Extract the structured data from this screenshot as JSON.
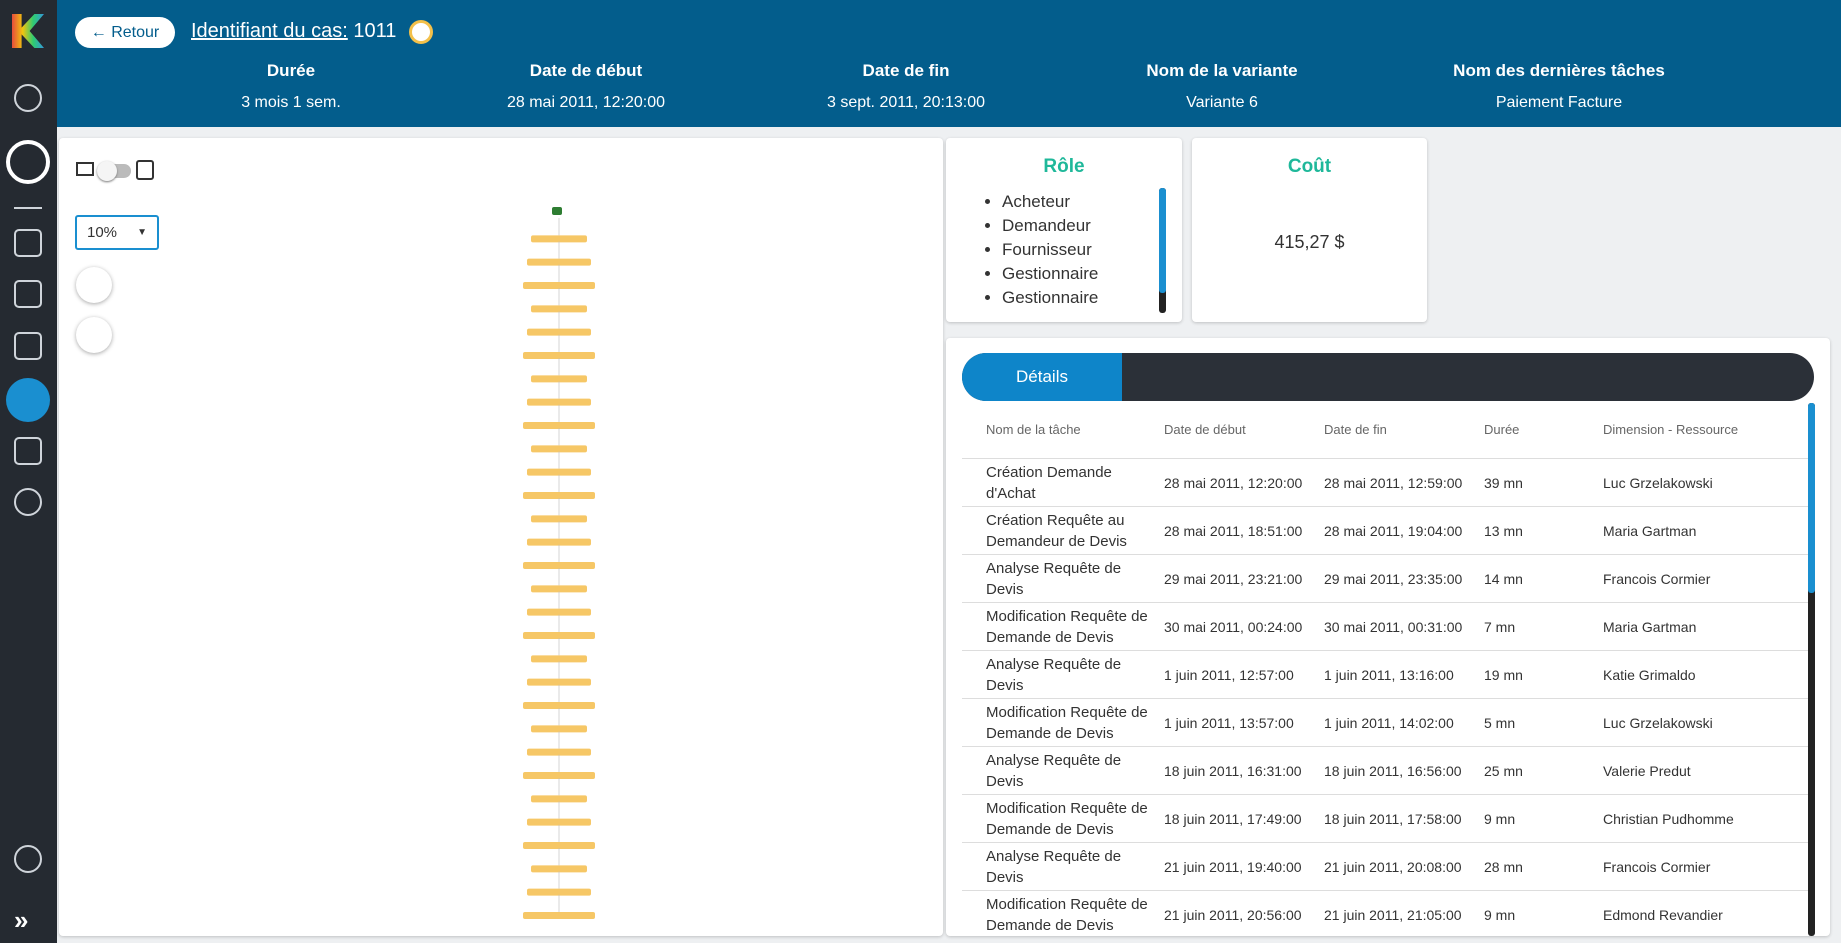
{
  "header": {
    "back": "Retour",
    "case_label": "Identifiant du cas:",
    "case_id": "1011",
    "fields": [
      {
        "label": "Durée",
        "value": "3 mois 1 sem."
      },
      {
        "label": "Date de début",
        "value": "28 mai 2011, 12:20:00"
      },
      {
        "label": "Date de fin",
        "value": "3 sept. 2011, 20:13:00"
      },
      {
        "label": "Nom de la variante",
        "value": "Variante 6"
      },
      {
        "label": "Nom des dernières tâches",
        "value": "Paiement Facture"
      }
    ]
  },
  "zoom": "10%",
  "role": {
    "title": "Rôle",
    "items": [
      "Acheteur",
      "Demandeur",
      "Fournisseur",
      "Gestionnaire",
      "Gestionnaire"
    ]
  },
  "cost": {
    "title": "Coût",
    "value": "415,27 $"
  },
  "details": {
    "tab": "Détails",
    "columns": [
      "Nom de la tâche",
      "Date de début",
      "Date de fin",
      "Durée",
      "Dimension - Ressource"
    ],
    "rows": [
      [
        "Création Demande d'Achat",
        "28 mai 2011, 12:20:00",
        "28 mai 2011, 12:59:00",
        "39 mn",
        "Luc Grzelakowski"
      ],
      [
        "Création Requête au Demandeur de Devis",
        "28 mai 2011, 18:51:00",
        "28 mai 2011, 19:04:00",
        "13 mn",
        "Maria Gartman"
      ],
      [
        "Analyse Requête de Devis",
        "29 mai 2011, 23:21:00",
        "29 mai 2011, 23:35:00",
        "14 mn",
        "Francois Cormier"
      ],
      [
        "Modification Requête de Demande de Devis",
        "30 mai 2011, 00:24:00",
        "30 mai 2011, 00:31:00",
        "7 mn",
        "Maria Gartman"
      ],
      [
        "Analyse Requête de Devis",
        "1 juin 2011, 12:57:00",
        "1 juin 2011, 13:16:00",
        "19 mn",
        "Katie Grimaldo"
      ],
      [
        "Modification Requête de Demande de Devis",
        "1 juin 2011, 13:57:00",
        "1 juin 2011, 14:02:00",
        "5 mn",
        "Luc Grzelakowski"
      ],
      [
        "Analyse Requête de Devis",
        "18 juin 2011, 16:31:00",
        "18 juin 2011, 16:56:00",
        "25 mn",
        "Valerie Predut"
      ],
      [
        "Modification Requête de Demande de Devis",
        "18 juin 2011, 17:49:00",
        "18 juin 2011, 17:58:00",
        "9 mn",
        "Christian Pudhomme"
      ],
      [
        "Analyse Requête de Devis",
        "21 juin 2011, 19:40:00",
        "21 juin 2011, 20:08:00",
        "28 mn",
        "Francois Cormier"
      ],
      [
        "Modification Requête de Demande de Devis",
        "21 juin 2011, 20:56:00",
        "21 juin 2011, 21:05:00",
        "9 mn",
        "Edmond Revandier"
      ]
    ]
  }
}
